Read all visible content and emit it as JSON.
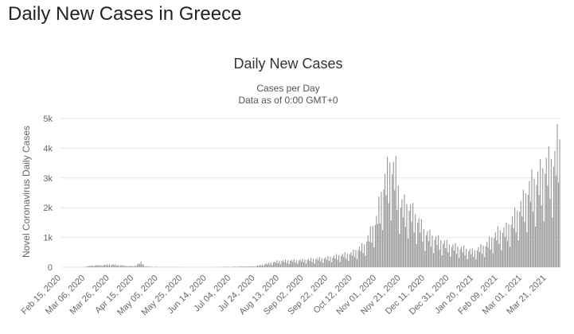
{
  "page": {
    "title": "Daily New Cases in Greece"
  },
  "chart_data": {
    "type": "bar",
    "title": "Daily New Cases",
    "subtitle_line1": "Cases per Day",
    "subtitle_line2": "Data as of 0:00 GMT+0",
    "ylabel": "Novel Coronavirus Daily Cases",
    "xlabel": "",
    "ylim": [
      0,
      5000
    ],
    "y_ticks": [
      {
        "value": 0,
        "label": "0"
      },
      {
        "value": 1000,
        "label": "1k"
      },
      {
        "value": 2000,
        "label": "2k"
      },
      {
        "value": 3000,
        "label": "3k"
      },
      {
        "value": 4000,
        "label": "4k"
      },
      {
        "value": 5000,
        "label": "5k"
      }
    ],
    "x_tick_labels": [
      "Feb 15, 2020",
      "Mar 06, 2020",
      "Mar 26, 2020",
      "Apr 15, 2020",
      "May 05, 2020",
      "May 25, 2020",
      "Jun 14, 2020",
      "Jul 04, 2020",
      "Jul 24, 2020",
      "Aug 13, 2020",
      "Sep 02, 2020",
      "Sep 22, 2020",
      "Oct 12, 2020",
      "Nov 01, 2020",
      "Nov 21, 2020",
      "Dec 11, 2020",
      "Dec 31, 2020",
      "Jan 20, 2021",
      "Feb 09, 2021",
      "Mar 01, 2021",
      "Mar 21, 2021"
    ],
    "x_start": "2020-02-15",
    "grid": true,
    "bar_color": "#9a9a9a",
    "anchors": [
      [
        "2020-02-15",
        0
      ],
      [
        "2020-02-28",
        0
      ],
      [
        "2020-03-06",
        10
      ],
      [
        "2020-03-12",
        60
      ],
      [
        "2020-03-20",
        60
      ],
      [
        "2020-03-26",
        90
      ],
      [
        "2020-04-02",
        70
      ],
      [
        "2020-04-10",
        40
      ],
      [
        "2020-04-15",
        30
      ],
      [
        "2020-04-21",
        150
      ],
      [
        "2020-04-25",
        20
      ],
      [
        "2020-05-05",
        10
      ],
      [
        "2020-06-14",
        5
      ],
      [
        "2020-07-04",
        15
      ],
      [
        "2020-07-24",
        30
      ],
      [
        "2020-08-13",
        200
      ],
      [
        "2020-09-02",
        230
      ],
      [
        "2020-09-22",
        300
      ],
      [
        "2020-10-12",
        450
      ],
      [
        "2020-10-22",
        700
      ],
      [
        "2020-11-01",
        1500
      ],
      [
        "2020-11-06",
        2500
      ],
      [
        "2020-11-12",
        3200
      ],
      [
        "2020-11-17",
        3000
      ],
      [
        "2020-11-21",
        2000
      ],
      [
        "2020-11-28",
        1900
      ],
      [
        "2020-12-05",
        1500
      ],
      [
        "2020-12-11",
        1100
      ],
      [
        "2020-12-20",
        900
      ],
      [
        "2020-12-31",
        700
      ],
      [
        "2021-01-10",
        600
      ],
      [
        "2021-01-20",
        500
      ],
      [
        "2021-01-30",
        700
      ],
      [
        "2021-02-09",
        1100
      ],
      [
        "2021-02-16",
        1200
      ],
      [
        "2021-02-23",
        1600
      ],
      [
        "2021-03-01",
        2000
      ],
      [
        "2021-03-08",
        2600
      ],
      [
        "2021-03-14",
        2800
      ],
      [
        "2021-03-21",
        3200
      ],
      [
        "2021-03-28",
        3400
      ],
      [
        "2021-04-01",
        4300
      ]
    ]
  }
}
